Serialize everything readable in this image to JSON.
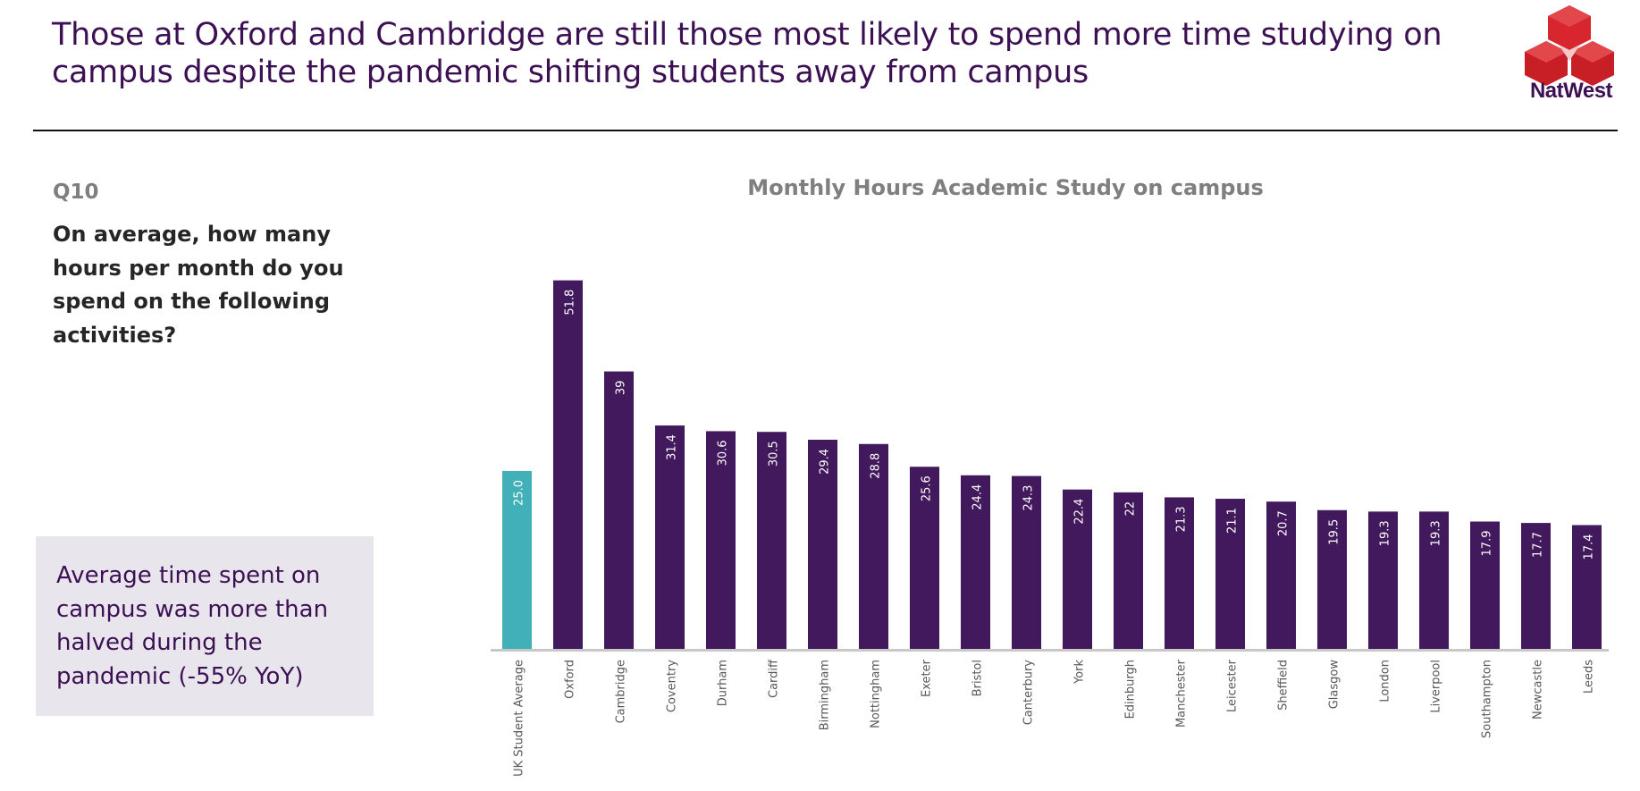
{
  "header": {
    "title": "Those at Oxford and Cambridge are still those most likely to spend more time studying on campus despite the pandemic shifting students away from campus",
    "logo_text": "NatWest"
  },
  "question": {
    "number": "Q10",
    "text": "On average, how many hours per month do you spend on the following activities?"
  },
  "callout": {
    "text": "Average time spent on campus was more than halved during the pandemic (-55% YoY)"
  },
  "colors": {
    "brand_purple": "#3c1053",
    "bar": "#42195c",
    "average_bar": "#42b0b9",
    "logo_red": "#d7262d",
    "axis": "#c8c8c8"
  },
  "chart_data": {
    "type": "bar",
    "title": "Monthly Hours Academic Study on campus",
    "xlabel": "",
    "ylabel": "",
    "ylim": [
      0,
      55
    ],
    "grid": false,
    "categories": [
      "UK Student Average",
      "Oxford",
      "Cambridge",
      "Coventry",
      "Durham",
      "Cardiff",
      "Birmingham",
      "Nottingham",
      "Exeter",
      "Bristol",
      "Canterbury",
      "York",
      "Edinburgh",
      "Manchester",
      "Leicester",
      "Sheffield",
      "Glasgow",
      "London",
      "Liverpool",
      "Southampton",
      "Newcastle",
      "Leeds"
    ],
    "values": [
      25.0,
      51.8,
      39,
      31.4,
      30.6,
      30.5,
      29.4,
      28.8,
      25.6,
      24.4,
      24.3,
      22.4,
      22,
      21.3,
      21.1,
      20.7,
      19.5,
      19.3,
      19.3,
      17.9,
      17.7,
      17.4
    ],
    "value_labels": [
      "25.0",
      "51.8",
      "39",
      "31.4",
      "30.6",
      "30.5",
      "29.4",
      "28.8",
      "25.6",
      "24.4",
      "24.3",
      "22.4",
      "22",
      "21.3",
      "21.1",
      "20.7",
      "19.5",
      "19.3",
      "19.3",
      "17.9",
      "17.7",
      "17.4"
    ],
    "highlight_index": 0
  }
}
